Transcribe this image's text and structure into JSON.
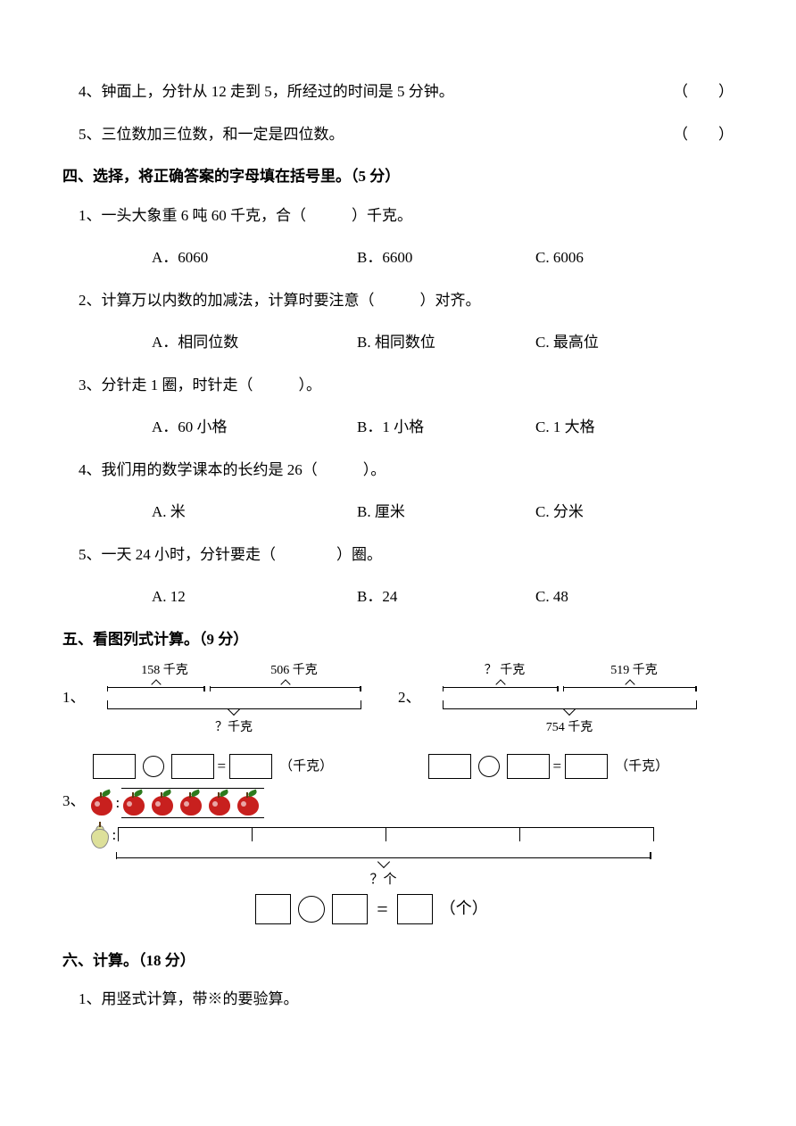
{
  "tf": {
    "q4": "4、钟面上，分针从 12 走到 5，所经过的时间是 5 分钟。",
    "q5": "5、三位数加三位数，和一定是四位数。",
    "paren": "（　　）"
  },
  "sec4": {
    "title": "四、选择，将正确答案的字母填在括号里。（5 分）",
    "q1": {
      "text": "1、一头大象重 6 吨 60 千克，合（　　　）千克。",
      "a": "A．6060",
      "b": "B．6600",
      "c": "C. 6006"
    },
    "q2": {
      "text": "2、计算万以内数的加减法，计算时要注意（　　　）对齐。",
      "a": "A．相同位数",
      "b": "B. 相同数位",
      "c": "C. 最高位"
    },
    "q3": {
      "text": "3、分针走 1 圈，时针走（　　　）。",
      "a": "A．60 小格",
      "b": "B．1 小格",
      "c": "C. 1 大格"
    },
    "q4": {
      "text": "4、我们用的数学课本的长约是 26（　　　）。",
      "a": "A. 米",
      "b": "B. 厘米",
      "c": "C. 分米"
    },
    "q5": {
      "text": "5、一天 24 小时，分针要走（　　　　）圈。",
      "a": "A. 12",
      "b": "B．24",
      "c": "C. 48"
    }
  },
  "sec5": {
    "title": "五、看图列式计算。（9 分）",
    "d1": {
      "top_left": "158 千克",
      "top_right": "506 千克",
      "bottom": "？千克",
      "unit": "（千克）",
      "left_w": 110,
      "right_w": 180,
      "colors": {
        "line": "#000000"
      }
    },
    "d2": {
      "top_left": "？ 千克",
      "top_right": "519 千克",
      "bottom": "754 千克",
      "unit": "（千克）",
      "left_w": 130,
      "right_w": 160
    },
    "d3": {
      "apples_per_group": 5,
      "pear_groups": 4,
      "bottom": "？个",
      "unit": "（个）",
      "apple_color": "#c8201e",
      "leaf_color": "#2d7a1d",
      "pear_color": "#dde09a"
    },
    "eq": "="
  },
  "sec6": {
    "title": "六、计算。（18 分）",
    "q1": "1、用竖式计算，带※的要验算。"
  }
}
